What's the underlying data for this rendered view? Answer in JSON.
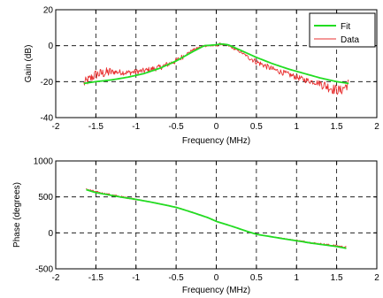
{
  "chart_data": [
    {
      "type": "line",
      "xlabel": "Frequency (MHz)",
      "ylabel": "Gain (dB)",
      "xlim": [
        -2,
        2
      ],
      "ylim": [
        -40,
        20
      ],
      "xticks": [
        -2,
        -1.5,
        -1,
        -0.5,
        0,
        0.5,
        1,
        1.5,
        2
      ],
      "xtick_labels": [
        "-2",
        "-1.5",
        "-1",
        "-0.5",
        "0",
        "0.5",
        "1",
        "1.5",
        "2"
      ],
      "yticks": [
        -40,
        -20,
        0,
        20
      ],
      "ytick_labels": [
        "-40",
        "-20",
        "0",
        "20"
      ],
      "grid": true,
      "legend": "top-right",
      "series": [
        {
          "name": "Fit",
          "color": "#22dd22",
          "x": [
            -1.65,
            -1.5,
            -1.3,
            -1.1,
            -0.9,
            -0.7,
            -0.5,
            -0.3,
            -0.15,
            0,
            0.05,
            0.15,
            0.3,
            0.5,
            0.7,
            0.9,
            1.1,
            1.3,
            1.5,
            1.65
          ],
          "y": [
            -21,
            -20,
            -19,
            -17.5,
            -15.5,
            -12.5,
            -8.5,
            -3.5,
            0,
            0.5,
            1,
            0.5,
            -2.5,
            -6.5,
            -10,
            -13,
            -15.5,
            -18,
            -20,
            -21
          ]
        },
        {
          "name": "Data",
          "color": "#e83030",
          "noisy": true,
          "x": [
            -1.65,
            -1.5,
            -1.3,
            -1.1,
            -0.9,
            -0.7,
            -0.5,
            -0.3,
            -0.15,
            0,
            0.05,
            0.15,
            0.3,
            0.5,
            0.7,
            0.9,
            1.1,
            1.3,
            1.45,
            1.55,
            1.65
          ],
          "y": [
            -21,
            -16,
            -14.5,
            -15,
            -14,
            -12,
            -8.5,
            -2.5,
            0,
            0,
            1,
            0,
            -3.5,
            -9,
            -13,
            -16,
            -19,
            -21,
            -24,
            -25,
            -21
          ]
        }
      ]
    },
    {
      "type": "line",
      "xlabel": "Frequency (MHz)",
      "ylabel": "Phase (degrees)",
      "xlim": [
        -2,
        2
      ],
      "ylim": [
        -500,
        1000
      ],
      "xticks": [
        -2,
        -1.5,
        -1,
        -0.5,
        0,
        0.5,
        1,
        1.5,
        2
      ],
      "xtick_labels": [
        "-2",
        "-1.5",
        "-1",
        "-0.5",
        "0",
        "0.5",
        "1",
        "1.5",
        "2"
      ],
      "yticks": [
        -500,
        0,
        500,
        1000
      ],
      "ytick_labels": [
        "-500",
        "0",
        "500",
        "1000"
      ],
      "grid": true,
      "series": [
        {
          "name": "Fit",
          "color": "#22dd22",
          "x": [
            -1.62,
            -1.5,
            -1.2,
            -1,
            -0.8,
            -0.5,
            -0.3,
            -0.1,
            0,
            0.2,
            0.4,
            0.5,
            0.8,
            1,
            1.2,
            1.5,
            1.62
          ],
          "y": [
            600,
            560,
            500,
            465,
            425,
            355,
            285,
            210,
            160,
            90,
            15,
            -20,
            -75,
            -110,
            -145,
            -190,
            -215
          ]
        },
        {
          "name": "Data",
          "color": "#e83030",
          "noisy": true,
          "x": [
            -1.62,
            -1.5,
            -1.2,
            -1,
            -0.8,
            -0.5,
            -0.3,
            -0.1,
            0,
            0.2,
            0.4,
            0.5,
            0.8,
            1,
            1.2,
            1.5,
            1.62
          ],
          "y": [
            610,
            570,
            505,
            468,
            428,
            358,
            288,
            212,
            162,
            92,
            18,
            -18,
            -70,
            -105,
            -140,
            -180,
            -200
          ]
        }
      ]
    }
  ]
}
